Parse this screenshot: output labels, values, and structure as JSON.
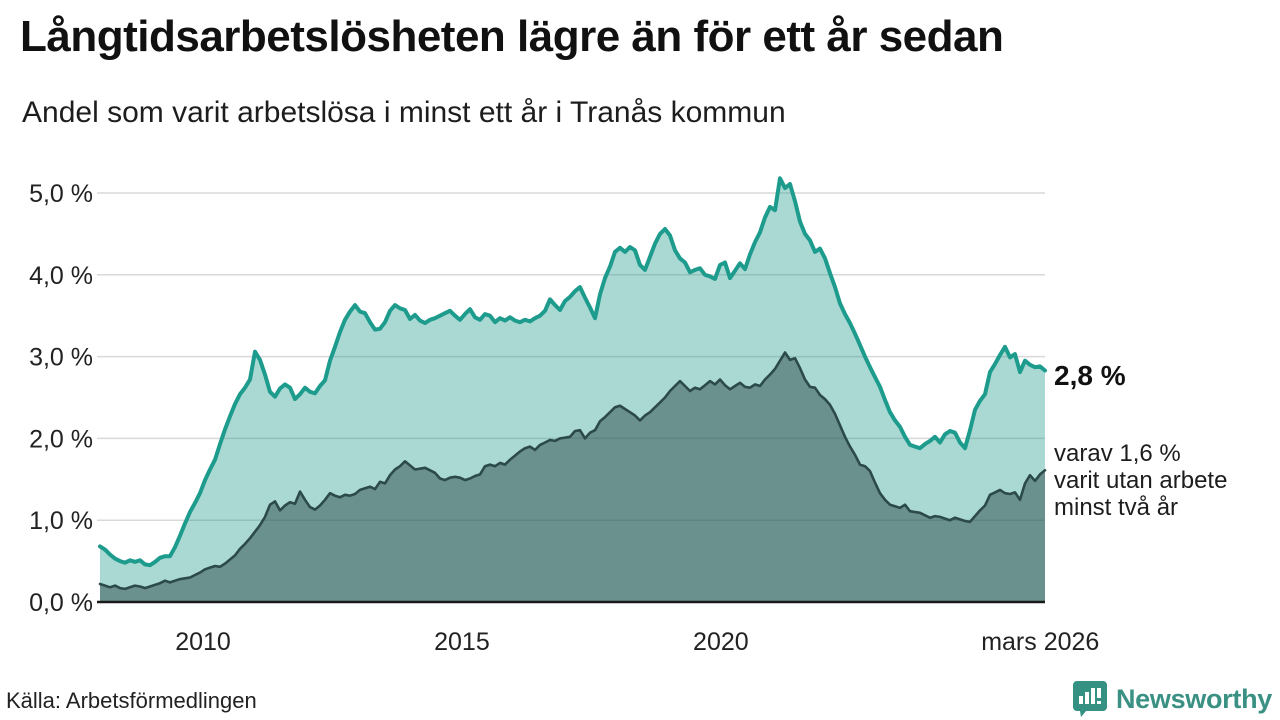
{
  "header": {
    "title": "Långtidsarbetslösheten lägre än för ett år sedan",
    "subtitle": "Andel som varit arbetslösa i minst ett år i Tranås kommun"
  },
  "chart_data": {
    "type": "area",
    "unit": "%",
    "x_range": [
      "2008",
      "mars 2026"
    ],
    "ylim": [
      0,
      5
    ],
    "grid": true,
    "yticks": [
      {
        "value": 0,
        "label": "0,0 %"
      },
      {
        "value": 1,
        "label": "1,0 %"
      },
      {
        "value": 2,
        "label": "2,0 %"
      },
      {
        "value": 3,
        "label": "3,0 %"
      },
      {
        "value": 4,
        "label": "4,0 %"
      },
      {
        "value": 5,
        "label": "5,0 %"
      }
    ],
    "xticks": [
      {
        "pos": 0.109,
        "label": "2010"
      },
      {
        "pos": 0.383,
        "label": "2015"
      },
      {
        "pos": 0.657,
        "label": "2020"
      },
      {
        "pos": 0.995,
        "label": "mars 2026"
      }
    ],
    "series": [
      {
        "name": "Andel som varit arbetslösa i minst ett år",
        "line_color": "#1d9b8c",
        "fill_color": "rgba(31,155,140,0.38)",
        "line_width": 4,
        "values": [
          0.68,
          0.64,
          0.58,
          0.53,
          0.5,
          0.48,
          0.51,
          0.49,
          0.51,
          0.46,
          0.45,
          0.49,
          0.54,
          0.56,
          0.56,
          0.67,
          0.81,
          0.96,
          1.1,
          1.21,
          1.33,
          1.49,
          1.62,
          1.74,
          1.93,
          2.11,
          2.27,
          2.42,
          2.54,
          2.62,
          2.72,
          3.06,
          2.96,
          2.78,
          2.57,
          2.51,
          2.61,
          2.66,
          2.62,
          2.48,
          2.54,
          2.62,
          2.57,
          2.55,
          2.64,
          2.71,
          2.95,
          3.12,
          3.3,
          3.45,
          3.55,
          3.63,
          3.55,
          3.53,
          3.42,
          3.33,
          3.34,
          3.42,
          3.56,
          3.63,
          3.59,
          3.57,
          3.46,
          3.51,
          3.44,
          3.41,
          3.45,
          3.47,
          3.5,
          3.53,
          3.56,
          3.5,
          3.45,
          3.52,
          3.58,
          3.48,
          3.45,
          3.52,
          3.5,
          3.42,
          3.47,
          3.44,
          3.48,
          3.44,
          3.42,
          3.45,
          3.43,
          3.47,
          3.5,
          3.56,
          3.7,
          3.63,
          3.57,
          3.68,
          3.73,
          3.8,
          3.85,
          3.72,
          3.6,
          3.47,
          3.76,
          3.96,
          4.1,
          4.28,
          4.33,
          4.28,
          4.34,
          4.3,
          4.12,
          4.06,
          4.22,
          4.38,
          4.5,
          4.56,
          4.48,
          4.3,
          4.2,
          4.15,
          4.03,
          4.06,
          4.08,
          4.0,
          3.98,
          3.95,
          4.12,
          4.15,
          3.96,
          4.05,
          4.14,
          4.07,
          4.25,
          4.4,
          4.52,
          4.7,
          4.83,
          4.79,
          5.18,
          5.06,
          5.11,
          4.9,
          4.65,
          4.5,
          4.42,
          4.28,
          4.32,
          4.2,
          4.02,
          3.85,
          3.65,
          3.52,
          3.41,
          3.28,
          3.14,
          3.0,
          2.87,
          2.75,
          2.63,
          2.47,
          2.32,
          2.22,
          2.14,
          2.02,
          1.92,
          1.9,
          1.88,
          1.93,
          1.97,
          2.02,
          1.95,
          2.05,
          2.09,
          2.07,
          1.95,
          1.88,
          2.1,
          2.35,
          2.46,
          2.54,
          2.81,
          2.91,
          3.02,
          3.12,
          2.99,
          3.03,
          2.81,
          2.95,
          2.9,
          2.87,
          2.88,
          2.83
        ]
      },
      {
        "name": "varav arbetslösa minst två år",
        "line_color": "#2c4a4c",
        "fill_color": "rgba(43,73,74,0.50)",
        "line_width": 2.6,
        "values": [
          0.22,
          0.2,
          0.18,
          0.2,
          0.17,
          0.16,
          0.18,
          0.2,
          0.19,
          0.17,
          0.19,
          0.21,
          0.23,
          0.26,
          0.24,
          0.26,
          0.28,
          0.29,
          0.3,
          0.33,
          0.36,
          0.4,
          0.42,
          0.44,
          0.43,
          0.47,
          0.52,
          0.57,
          0.65,
          0.71,
          0.78,
          0.86,
          0.94,
          1.04,
          1.19,
          1.23,
          1.12,
          1.18,
          1.22,
          1.2,
          1.35,
          1.25,
          1.16,
          1.13,
          1.18,
          1.25,
          1.33,
          1.3,
          1.28,
          1.31,
          1.3,
          1.32,
          1.37,
          1.39,
          1.41,
          1.38,
          1.47,
          1.45,
          1.55,
          1.62,
          1.66,
          1.72,
          1.67,
          1.62,
          1.63,
          1.64,
          1.61,
          1.58,
          1.51,
          1.49,
          1.52,
          1.53,
          1.52,
          1.49,
          1.51,
          1.54,
          1.56,
          1.66,
          1.68,
          1.66,
          1.7,
          1.68,
          1.74,
          1.79,
          1.84,
          1.88,
          1.9,
          1.86,
          1.92,
          1.95,
          1.98,
          1.97,
          2.0,
          2.01,
          2.02,
          2.09,
          2.1,
          2.0,
          2.07,
          2.1,
          2.21,
          2.26,
          2.32,
          2.38,
          2.4,
          2.36,
          2.32,
          2.28,
          2.22,
          2.28,
          2.32,
          2.38,
          2.44,
          2.5,
          2.58,
          2.64,
          2.7,
          2.64,
          2.58,
          2.62,
          2.6,
          2.65,
          2.7,
          2.66,
          2.72,
          2.65,
          2.6,
          2.64,
          2.68,
          2.63,
          2.62,
          2.66,
          2.64,
          2.72,
          2.78,
          2.85,
          2.95,
          3.05,
          2.96,
          2.98,
          2.86,
          2.72,
          2.63,
          2.62,
          2.53,
          2.48,
          2.41,
          2.3,
          2.16,
          2.02,
          1.9,
          1.8,
          1.68,
          1.66,
          1.6,
          1.46,
          1.33,
          1.25,
          1.19,
          1.17,
          1.15,
          1.19,
          1.11,
          1.1,
          1.09,
          1.06,
          1.03,
          1.05,
          1.04,
          1.02,
          1.0,
          1.03,
          1.01,
          0.99,
          0.98,
          1.05,
          1.12,
          1.18,
          1.31,
          1.34,
          1.37,
          1.33,
          1.32,
          1.34,
          1.25,
          1.45,
          1.55,
          1.48,
          1.56,
          1.61
        ]
      }
    ],
    "annotations": {
      "end_value": "2,8 %",
      "secondary": "varav 1,6 %\nvarit utan arbete\nminst två år"
    }
  },
  "footer": {
    "source": "Källa: Arbetsförmedlingen",
    "brand": "Newsworthy"
  },
  "colors": {
    "accent_teal": "#1d9b8c",
    "dark_series": "#2c4a4c",
    "brand_teal": "#3a9183",
    "gridline": "#d9d9d9",
    "axis": "#1a1a1a"
  }
}
